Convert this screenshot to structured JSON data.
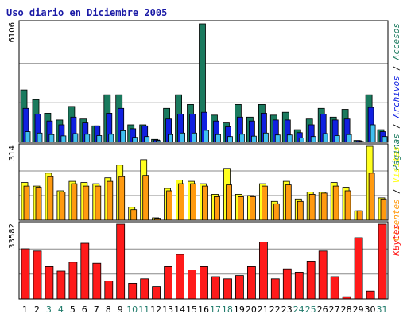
{
  "chart_data": {
    "type": "bar",
    "title": "Uso diario en Diciembre 2005",
    "categories": [
      "1",
      "2",
      "3",
      "4",
      "5",
      "6",
      "7",
      "8",
      "9",
      "10",
      "11",
      "12",
      "13",
      "14",
      "15",
      "16",
      "17",
      "18",
      "19",
      "20",
      "21",
      "22",
      "23",
      "24",
      "25",
      "26",
      "27",
      "28",
      "29",
      "30",
      "31"
    ],
    "weekend_days": [
      "3",
      "4",
      "10",
      "11",
      "17",
      "18",
      "24",
      "25",
      "31"
    ],
    "colors": {
      "title": "#1a1aa6",
      "frame": "#000000",
      "gridline": "#888888",
      "weekday_label": "#000000",
      "weekend_label": "#1f7a6a",
      "paginas": "#1a7a5e",
      "archivos": "#1020e0",
      "accesos": "#40c0f0",
      "visitas": "#ffff20",
      "clientes": "#ff9a10",
      "kbytes": "#ff1a1a"
    },
    "panels": [
      {
        "id": "hits",
        "ymax_label": "6106",
        "ylim": [
          0,
          6106
        ],
        "legend": [
          {
            "text": "Páginas",
            "color": "#1a7a5e"
          },
          {
            "text": " / ",
            "color": "#000000"
          },
          {
            "text": "Archivos",
            "color": "#1020e0"
          },
          {
            "text": " / ",
            "color": "#000000"
          },
          {
            "text": "Accesos",
            "color": "#1a7a5e"
          }
        ],
        "series": [
          {
            "name": "Páginas",
            "color": "#1a7a5e",
            "values": [
              2700,
              2200,
              1500,
              1150,
              1850,
              1200,
              850,
              2450,
              2450,
              900,
              900,
              150,
              1750,
              2450,
              1950,
              6106,
              1400,
              1000,
              1950,
              1300,
              1950,
              1400,
              1550,
              650,
              1200,
              1750,
              1300,
              1700,
              100,
              2450,
              650
            ]
          },
          {
            "name": "Archivos",
            "color": "#1020e0",
            "values": [
              1750,
              1450,
              1100,
              900,
              1300,
              1000,
              850,
              1500,
              1750,
              700,
              850,
              120,
              1200,
              1450,
              1450,
              1550,
              1100,
              800,
              1300,
              1100,
              1500,
              1150,
              1150,
              500,
              900,
              1450,
              1150,
              1200,
              80,
              1800,
              550
            ]
          },
          {
            "name": "Accesos",
            "color": "#40c0f0",
            "values": [
              550,
              480,
              400,
              330,
              450,
              420,
              350,
              420,
              600,
              260,
              300,
              80,
              400,
              480,
              480,
              620,
              400,
              300,
              420,
              320,
              480,
              380,
              380,
              230,
              300,
              450,
              350,
              400,
              50,
              900,
              300
            ]
          }
        ]
      },
      {
        "id": "visits",
        "ymax_label": "314",
        "ylim": [
          0,
          314
        ],
        "legend": [
          {
            "text": "Clientes",
            "color": "#ff9a10"
          },
          {
            "text": " / ",
            "color": "#000000"
          },
          {
            "text": "Visitas",
            "color": "#ffff20"
          }
        ],
        "series": [
          {
            "name": "Visitas",
            "color": "#ffff20",
            "values": [
              160,
              145,
              200,
              125,
              165,
              160,
              155,
              180,
              234,
              55,
              257,
              10,
              135,
              170,
              165,
              155,
              110,
              220,
              110,
              105,
              155,
              80,
              165,
              90,
              120,
              120,
              160,
              140,
              40,
              314,
              95
            ]
          },
          {
            "name": "Clientes",
            "color": "#ff9a10",
            "values": [
              145,
              140,
              185,
              120,
              155,
              145,
              145,
              165,
              185,
              45,
              190,
              8,
              125,
              155,
              155,
              145,
              100,
              150,
              100,
              100,
              145,
              70,
              150,
              80,
              110,
              115,
              145,
              125,
              40,
              200,
              90
            ]
          }
        ]
      },
      {
        "id": "kbytes",
        "ymax_label": "33582",
        "ylim": [
          0,
          33582
        ],
        "legend": [
          {
            "text": "KBytes",
            "color": "#ff1a1a"
          }
        ],
        "series": [
          {
            "name": "KBytes",
            "color": "#ff1a1a",
            "values": [
              22500,
              21500,
              14500,
              12500,
              16500,
              25000,
              16000,
              8000,
              33582,
              7000,
              9000,
              5500,
              14500,
              20000,
              13000,
              14500,
              10000,
              9000,
              10500,
              14500,
              25500,
              9000,
              13500,
              12000,
              17000,
              21500,
              10000,
              1000,
              27500,
              3500,
              33582
            ]
          }
        ]
      }
    ]
  }
}
